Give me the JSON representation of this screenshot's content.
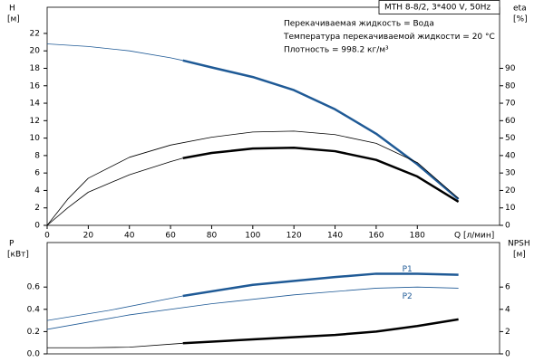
{
  "chart_data": [
    {
      "type": "line",
      "title": "MTH 8-8/2, 3*400 V, 50Hz",
      "annotations": [
        "Перекачиваемая жидкость = Вода",
        "Температура перекачиваемой жидкости = 20 °C",
        "Плотность = 998.2 кг/м³"
      ],
      "xlabel": "Q [л/мин]",
      "ylabel": "H",
      "yunit": "[м]",
      "y2label": "eta",
      "y2unit": "[%]",
      "xlim": [
        0,
        220
      ],
      "xticks": [
        0,
        20,
        40,
        60,
        80,
        100,
        120,
        140,
        160,
        180
      ],
      "ylim": [
        0,
        25
      ],
      "yticks": [
        0,
        2,
        4,
        6,
        8,
        10,
        12,
        14,
        16,
        18,
        20,
        22
      ],
      "y2lim": [
        0,
        125
      ],
      "y2ticks": [
        0,
        10,
        20,
        30,
        40,
        50,
        60,
        70,
        80,
        90
      ],
      "series": [
        {
          "color": "#1f5a96",
          "width": 0.8,
          "x": [
            0,
            20,
            40,
            60,
            66
          ],
          "values": [
            20.8,
            20.5,
            20.0,
            19.2,
            18.9
          ]
        },
        {
          "color": "#1f5a96",
          "width": 2.5,
          "x": [
            66,
            80,
            100,
            120,
            140,
            160,
            180,
            200
          ],
          "values": [
            18.9,
            18.1,
            17.0,
            15.5,
            13.3,
            10.5,
            7.0,
            3.0
          ]
        },
        {
          "color": "#000000",
          "width": 0.8,
          "axis": "y2",
          "x": [
            0,
            10,
            20,
            40,
            60,
            80,
            100,
            120,
            140,
            160,
            180,
            200
          ],
          "values": [
            0,
            15,
            27,
            39,
            46,
            50.5,
            53.5,
            54,
            52,
            47,
            36,
            15.5
          ]
        },
        {
          "color": "#000000",
          "width": 0.8,
          "axis": "y2",
          "x": [
            0,
            10,
            20,
            40,
            60,
            66
          ],
          "values": [
            0,
            10,
            19,
            29,
            36.5,
            38.5
          ]
        },
        {
          "color": "#000000",
          "width": 2.5,
          "axis": "y2",
          "x": [
            66,
            80,
            100,
            120,
            140,
            160,
            180,
            200
          ],
          "values": [
            38.5,
            41.5,
            44,
            44.5,
            42.5,
            37.5,
            28,
            13.5
          ]
        }
      ]
    },
    {
      "type": "line",
      "ylabel": "P",
      "yunit": "[кВт]",
      "y2label": "NPSH",
      "y2unit": "[м]",
      "xlim": [
        0,
        220
      ],
      "ylim": [
        0,
        1.0
      ],
      "yticks": [
        {
          "value": 0,
          "label": "0.0"
        },
        0.2,
        0.4,
        0.6
      ],
      "y2lim": [
        0,
        10
      ],
      "y2ticks": [
        0,
        2,
        4,
        6
      ],
      "series": [
        {
          "color": "#1f5a96",
          "width": 0.8,
          "x": [
            0,
            30,
            66
          ],
          "values": [
            0.3,
            0.39,
            0.52
          ]
        },
        {
          "label": "P1",
          "color": "#1f5a96",
          "width": 2.5,
          "x": [
            66,
            100,
            140,
            160,
            180,
            200
          ],
          "values": [
            0.52,
            0.62,
            0.69,
            0.72,
            0.72,
            0.71
          ]
        },
        {
          "label": "P2",
          "color": "#1f5a96",
          "width": 0.8,
          "x": [
            0,
            40,
            80,
            120,
            160,
            180,
            200
          ],
          "values": [
            0.22,
            0.35,
            0.45,
            0.53,
            0.59,
            0.6,
            0.59
          ]
        },
        {
          "color": "#000000",
          "width": 0.8,
          "axis": "y2",
          "x": [
            0,
            20,
            40,
            66
          ],
          "values": [
            0.55,
            0.55,
            0.6,
            0.95
          ]
        },
        {
          "color": "#000000",
          "width": 2.5,
          "axis": "y2",
          "x": [
            66,
            100,
            140,
            160,
            180,
            200
          ],
          "values": [
            0.95,
            1.3,
            1.7,
            2.0,
            2.5,
            3.1
          ]
        }
      ]
    }
  ]
}
